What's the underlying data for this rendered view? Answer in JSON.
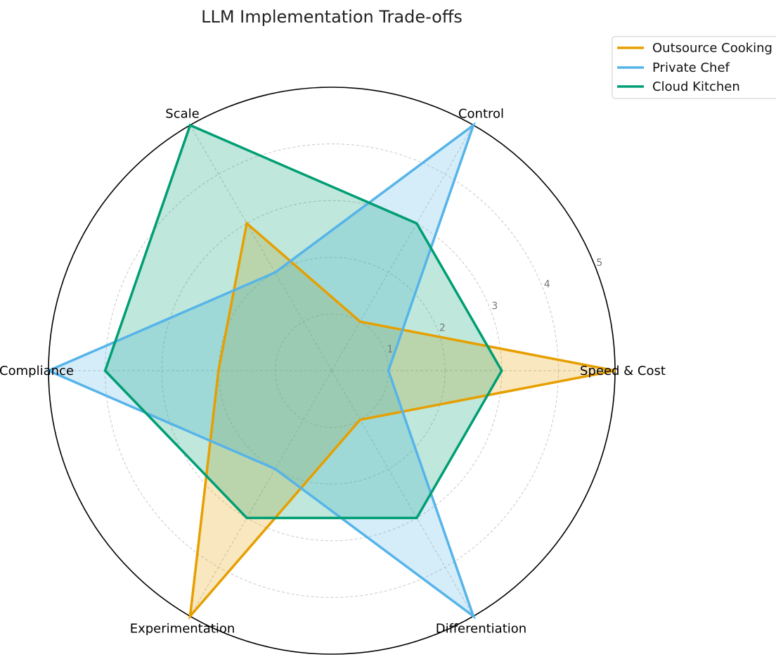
{
  "chart_data": {
    "type": "radar",
    "title": "LLM Implementation Trade-offs",
    "axes": [
      "Speed & Cost",
      "Control",
      "Scale",
      "Compliance",
      "Experimentation",
      "Differentiation"
    ],
    "rlim": [
      0,
      5
    ],
    "r_ticks": [
      "1",
      "2",
      "3",
      "4",
      "5"
    ],
    "grid": true,
    "legend_position": "top-right",
    "series": [
      {
        "name": "Outsource Cooking",
        "color": "#E69F00",
        "values": [
          5,
          1,
          3,
          2,
          5,
          1
        ]
      },
      {
        "name": "Private Chef",
        "color": "#56B4E9",
        "values": [
          1,
          5,
          2,
          5,
          2,
          5
        ]
      },
      {
        "name": "Cloud Kitchen",
        "color": "#009E73",
        "values": [
          3,
          3,
          5,
          4,
          3,
          3
        ]
      }
    ]
  }
}
